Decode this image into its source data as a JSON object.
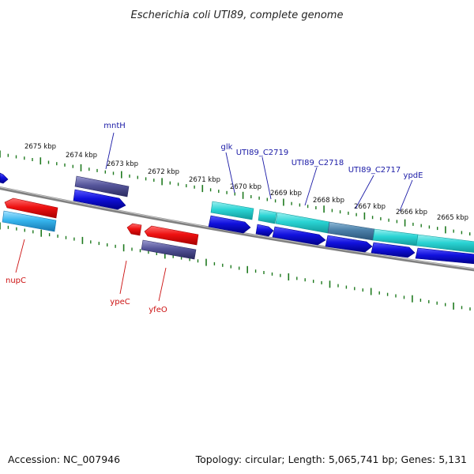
{
  "title": "Escherichia coli UTI89, complete genome",
  "footer": {
    "accession": "Accession: NC_007946",
    "topology": "Topology: circular; Length: 5,065,741 bp; Genes: 5,131"
  },
  "colors": {
    "backbone": "#808080",
    "ticks": "#1f7a1f",
    "label_blue": "#1a1aa6",
    "label_red": "#cc1111",
    "gene_red": "#ee1111",
    "gene_blue": "#1111dd",
    "gene_cyan": "#2ad4d4",
    "gene_lightblue": "#37b6ee",
    "gene_purple": "#55559a",
    "gene_slate": "#4b7fa8"
  },
  "kbp_labels": [
    "2675 kbp",
    "2674 kbp",
    "2673 kbp",
    "2672 kbp",
    "2671 kbp",
    "2670 kbp",
    "2669 kbp",
    "2668 kbp",
    "2667 kbp",
    "2666 kbp",
    "2665 kbp"
  ],
  "gene_labels_top": [
    "mntH",
    "glk",
    "UTI89_C2719",
    "UTI89_C2718",
    "UTI89_C2717",
    "ypdE"
  ],
  "gene_labels_bottom": [
    "nupC",
    "ypeC",
    "yfeO"
  ]
}
